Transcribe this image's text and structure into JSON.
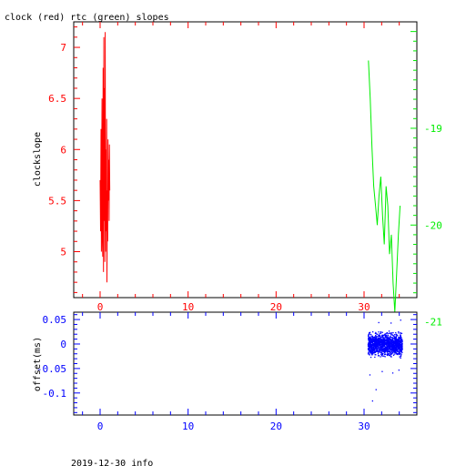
{
  "figure": {
    "title": "clock (red) rtc (green) slopes",
    "footer": "2019-12-30 info"
  },
  "colors": {
    "clock": "#ff0000",
    "rtc": "#00ee00",
    "offset": "#0000ff",
    "frame": "#000000"
  },
  "chart_data": [
    {
      "type": "line",
      "panel": "slopes",
      "ylabel": "clockslope",
      "xlim": [
        -3,
        36
      ],
      "ylim_left": [
        4.55,
        7.25
      ],
      "ylim_right": [
        -20.75,
        -17.9
      ],
      "xticks": [
        0,
        10,
        20,
        30
      ],
      "yticks_left": [
        5,
        5.5,
        6,
        6.5,
        7
      ],
      "yticks_right": [
        -21,
        -20,
        -19
      ],
      "ytick_labels_left": [
        "5",
        "5.5",
        "6",
        "6.5",
        "7"
      ],
      "ytick_labels_right": [
        "-21",
        "-20",
        "-19"
      ],
      "series": [
        {
          "axis": "left",
          "color": "#ff0000",
          "x": [
            0.0,
            0.05,
            0.1,
            0.14,
            0.18,
            0.22,
            0.26,
            0.3,
            0.34,
            0.38,
            0.42,
            0.46,
            0.5,
            0.54,
            0.58,
            0.62,
            0.66,
            0.7,
            0.74,
            0.78,
            0.82,
            0.86,
            0.9,
            0.94,
            0.98,
            1.02,
            1.06,
            1.1
          ],
          "y": [
            5.7,
            5.2,
            6.2,
            5.0,
            5.8,
            6.5,
            5.1,
            4.95,
            6.8,
            4.8,
            7.1,
            5.3,
            6.6,
            4.9,
            7.15,
            5.0,
            6.0,
            5.2,
            6.3,
            4.7,
            5.6,
            5.1,
            6.1,
            5.5,
            5.9,
            5.3,
            6.05,
            5.6
          ]
        },
        {
          "axis": "right",
          "color": "#00ee00",
          "x": [
            30.5,
            30.7,
            30.9,
            31.1,
            31.3,
            31.5,
            31.7,
            31.9,
            32.1,
            32.3,
            32.5,
            32.7,
            32.9,
            33.1,
            33.3,
            33.5,
            33.7,
            33.9,
            34.1
          ],
          "y": [
            -18.3,
            -18.7,
            -19.2,
            -19.6,
            -19.8,
            -20.0,
            -19.7,
            -19.5,
            -19.9,
            -20.2,
            -19.6,
            -19.8,
            -20.3,
            -20.1,
            -20.6,
            -20.9,
            -20.5,
            -20.1,
            -19.8
          ]
        }
      ]
    },
    {
      "type": "scatter",
      "panel": "offset",
      "ylabel": "offset(ms)",
      "xlim": [
        -3,
        36
      ],
      "ylim": [
        -0.145,
        0.065
      ],
      "xticks": [
        0,
        10,
        20,
        30
      ],
      "yticks": [
        0.05,
        0,
        -0.05,
        -0.1
      ],
      "ytick_labels": [
        "0.05",
        "0",
        "-0.05",
        "-0.1"
      ],
      "series": [
        {
          "color": "#0000ff",
          "x_range": [
            30.4,
            34.3
          ],
          "y_band": [
            -0.03,
            0.03
          ],
          "y_extremes": [
            -0.115,
            0.05
          ]
        }
      ]
    }
  ]
}
